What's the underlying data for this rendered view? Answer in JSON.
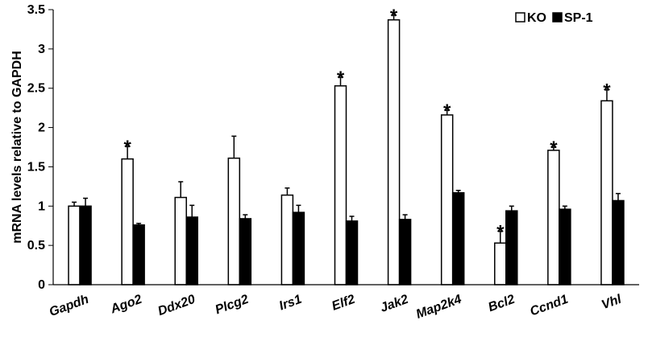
{
  "chart_data": {
    "type": "bar",
    "title": "",
    "xlabel": "",
    "ylabel": "mRNA levels relative to GAPDH",
    "ylim": [
      0,
      3.5
    ],
    "yticks": [
      "0",
      "0.5",
      "1",
      "1.5",
      "2",
      "2.5",
      "3",
      "3.5"
    ],
    "grid": false,
    "legend_position": "top-right",
    "categories": [
      "Gapdh",
      "Ago2",
      "Ddx20",
      "Plcg2",
      "Irs1",
      "Elf2",
      "Jak2",
      "Map2k4",
      "Bcl2",
      "Ccnd1",
      "Vhl"
    ],
    "series": [
      {
        "name": "KO",
        "fill": "#ffffff",
        "stroke": "#000000",
        "values": [
          1.0,
          1.6,
          1.11,
          1.61,
          1.14,
          2.53,
          3.37,
          2.16,
          0.53,
          1.71,
          2.34
        ],
        "errors": [
          0.05,
          0.16,
          0.2,
          0.28,
          0.09,
          0.11,
          0.06,
          0.06,
          0.15,
          0.04,
          0.14
        ],
        "significant": [
          false,
          true,
          false,
          false,
          false,
          true,
          true,
          true,
          true,
          true,
          true
        ]
      },
      {
        "name": "SP-1",
        "fill": "#000000",
        "stroke": "#000000",
        "values": [
          1.0,
          0.76,
          0.86,
          0.84,
          0.92,
          0.81,
          0.83,
          1.17,
          0.94,
          0.96,
          1.07
        ],
        "errors": [
          0.1,
          0.02,
          0.15,
          0.05,
          0.09,
          0.06,
          0.06,
          0.03,
          0.06,
          0.04,
          0.09
        ],
        "significant": [
          false,
          false,
          false,
          false,
          false,
          false,
          false,
          false,
          false,
          false,
          false
        ]
      }
    ],
    "significance_marker": "*"
  }
}
